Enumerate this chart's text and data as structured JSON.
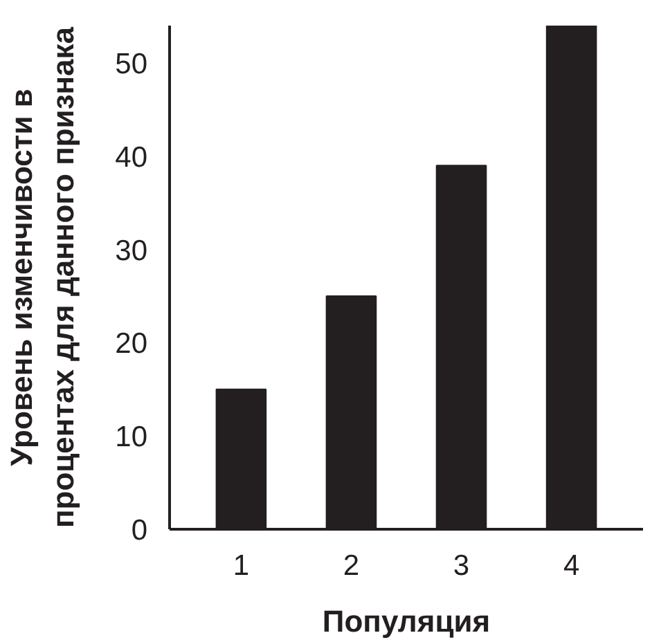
{
  "chart_data": {
    "type": "bar",
    "xlabel": "Популяция",
    "ylabel": "Уровень изменчивости в процентах для данного признака",
    "categories": [
      "1",
      "2",
      "3",
      "4"
    ],
    "values": [
      15,
      25,
      39,
      54
    ],
    "color": "#231f20",
    "ylim": [
      0,
      54
    ],
    "yticks": [
      0,
      10,
      20,
      30,
      40,
      50
    ],
    "grid": false
  }
}
